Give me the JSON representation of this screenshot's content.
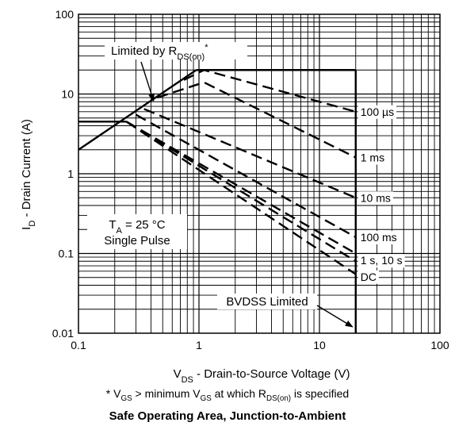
{
  "chart_data": {
    "type": "line",
    "title": "Safe Operating Area, Junction-to-Ambient",
    "footnote": {
      "text": "* V_GS > minimum V_GS at which R_DS(on) is specified",
      "p1": "* V",
      "s1": "GS",
      "p2": " > minimum V",
      "s2": "GS",
      "p3": " at which R",
      "s3": "DS(on)",
      "p4": " is specified"
    },
    "xlabel": {
      "text": "V_DS - Drain-to-Source Voltage (V)",
      "prefix": "V",
      "sub": "DS",
      "rest": " - Drain-to-Source Voltage (V)"
    },
    "ylabel": {
      "text": "I_D - Drain Current (A)",
      "prefix": "I",
      "sub": "D",
      "rest": " - Drain Current (A)"
    },
    "xscale": "log",
    "yscale": "log",
    "xlim": [
      0.1,
      100
    ],
    "ylim": [
      0.01,
      100
    ],
    "grid": true,
    "x_ticks": [
      "0.1",
      "1",
      "10",
      "100"
    ],
    "y_ticks": [
      "0.01",
      "0.1",
      "1",
      "10",
      "100"
    ],
    "rds_on_limit": {
      "from": [
        0.1,
        2.0
      ],
      "to": [
        0.95,
        20
      ]
    },
    "current_limit": {
      "y": 20,
      "x_from": 0.95,
      "x_to": 20
    },
    "bvdss_limit": {
      "x": 20,
      "y_from": 0.01,
      "y_to": 20
    },
    "series": [
      {
        "name": "100 µs",
        "points": [
          [
            0.75,
            15
          ],
          [
            1.1,
            20
          ],
          [
            20,
            6
          ]
        ]
      },
      {
        "name": "1 ms",
        "points": [
          [
            0.45,
            9
          ],
          [
            1.1,
            14
          ],
          [
            20,
            1.6
          ]
        ]
      },
      {
        "name": "10 ms",
        "points": [
          [
            0.35,
            6.5
          ],
          [
            20,
            0.5
          ]
        ]
      },
      {
        "name": "100 ms",
        "points": [
          [
            0.3,
            5.5
          ],
          [
            20,
            0.16
          ]
        ]
      },
      {
        "name": "1 s",
        "points": [
          [
            0.25,
            4.5
          ],
          [
            20,
            0.1
          ]
        ]
      },
      {
        "name": "10 s",
        "points": [
          [
            0.25,
            4.5
          ],
          [
            20,
            0.08
          ]
        ]
      },
      {
        "name": "DC",
        "points": [
          [
            0.1,
            4.5
          ],
          [
            0.25,
            4.5
          ],
          [
            20,
            0.055
          ]
        ]
      }
    ],
    "annotations": {
      "rds_on": {
        "prefix": "Limited by R",
        "sub": "DS(on)",
        "suffix": "*"
      },
      "conditions": {
        "line1_prefix": "T",
        "line1_sub": "A",
        "line1_rest": " = 25 °C",
        "line2": "Single Pulse"
      },
      "bvdss": "BVDSS Limited",
      "label_100us": "100 µs",
      "label_1ms": "1 ms",
      "label_10ms": "10 ms",
      "label_100ms": "100 ms",
      "label_1s10s": "1 s, 10 s",
      "label_dc": "DC"
    }
  }
}
